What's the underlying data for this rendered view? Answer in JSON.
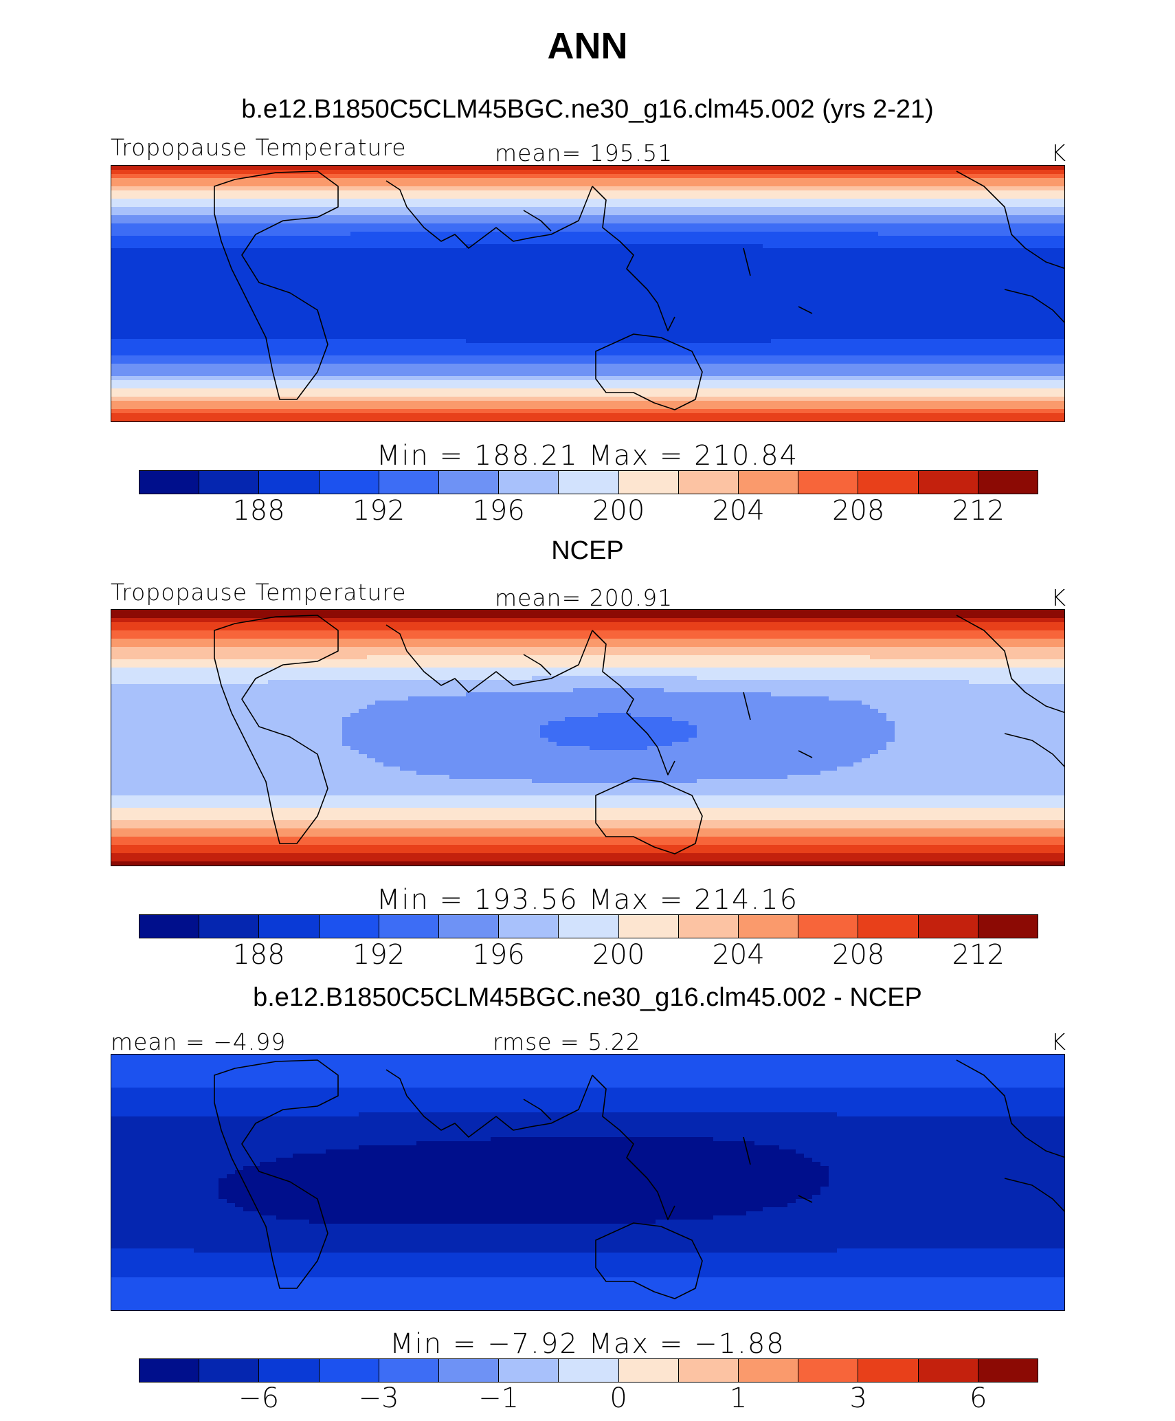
{
  "title": "ANN",
  "panels": [
    {
      "title": "b.e12.B1850C5CLM45BGC.ne30_g16.clm45.002 (yrs 2-21)",
      "left_label": "Tropopause Temperature",
      "center_label": "mean=  195.51",
      "unit": "K",
      "minmax": "Min  =  188.21  Max  =  210.84",
      "colorbar_ticks": [
        "188",
        "192",
        "196",
        "200",
        "204",
        "208",
        "212"
      ],
      "field": {
        "equator_value": 189.5,
        "west_pacific_min": 188.2,
        "pole_value": 211
      }
    },
    {
      "title": "NCEP",
      "left_label": "Tropopause Temperature",
      "center_label": "mean=  200.91",
      "unit": "K",
      "minmax": "Min  =  193.56  Max  =  214.16",
      "colorbar_ticks": [
        "188",
        "192",
        "196",
        "200",
        "204",
        "208",
        "212"
      ],
      "field": {
        "equator_value": 196.5,
        "west_pacific_min": 193.6,
        "pole_value": 214
      }
    },
    {
      "title": "b.e12.B1850C5CLM45BGC.ne30_g16.clm45.002 - NCEP",
      "left_label": "mean =   −4.99",
      "center_label": "rmse =     5.22",
      "unit": "K",
      "minmax": "Min  =   −7.92  Max  =   −1.88",
      "colorbar_ticks": [
        "−6",
        "−3",
        "−1",
        "0",
        "1",
        "3",
        "6"
      ],
      "field": {
        "equator_value": -6.5,
        "west_pacific_min": -7.9,
        "pole_value": -3.5
      }
    }
  ],
  "colorbar_colors": [
    "#000f8c",
    "#0526b0",
    "#0a3ad6",
    "#1c52ef",
    "#3d6df5",
    "#6e92f5",
    "#a8c1fb",
    "#d2e2fd",
    "#fde5d0",
    "#fcc3a3",
    "#fa9a6c",
    "#f7653a",
    "#e8401a",
    "#c4210d",
    "#8c0a04"
  ],
  "contour_levels": {
    "absolute": [
      186,
      188,
      190,
      192,
      194,
      196,
      198,
      200,
      202,
      204,
      206,
      208,
      210,
      212
    ],
    "difference": [
      -7,
      -6,
      -5,
      -3,
      -2,
      -1,
      -0.5,
      0,
      0.5,
      1,
      2,
      3,
      5,
      6
    ]
  }
}
